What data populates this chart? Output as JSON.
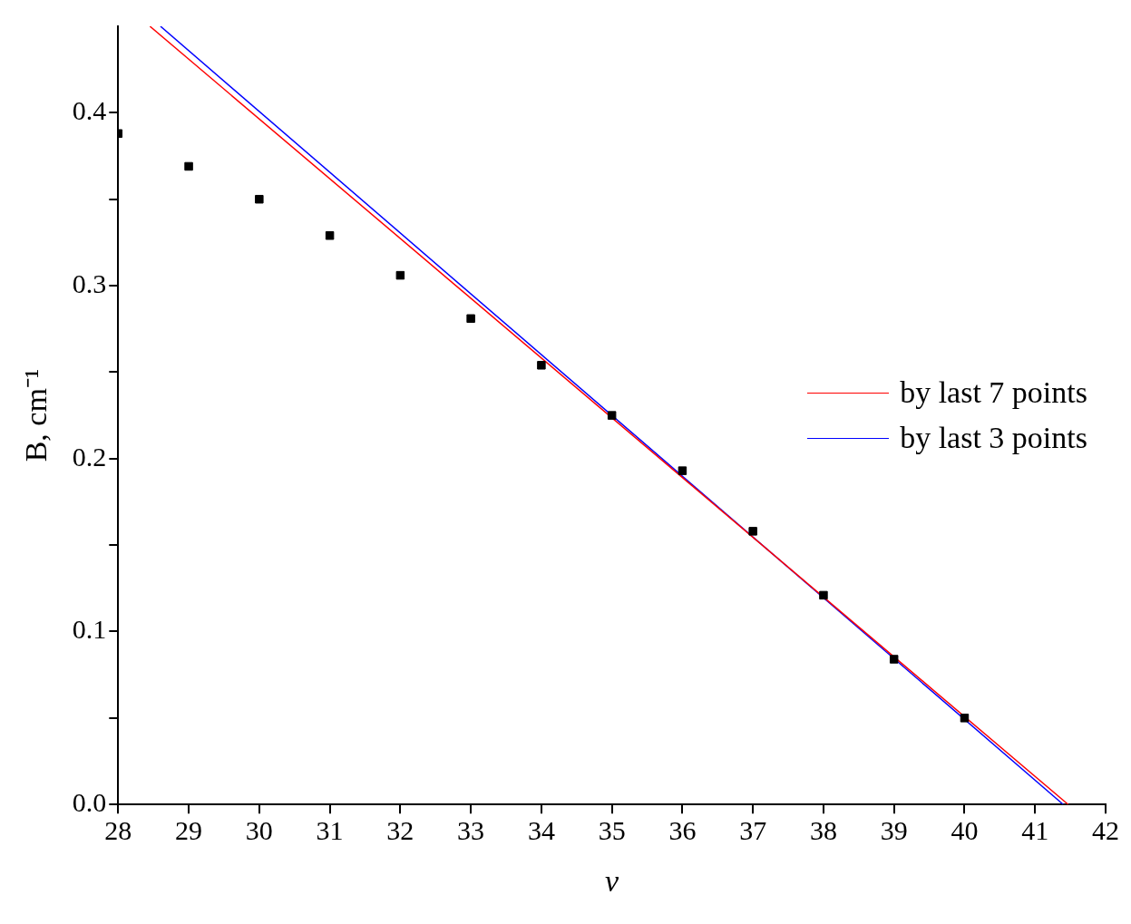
{
  "chart_data": {
    "type": "scatter",
    "xlabel": "v",
    "ylabel": "B, cm⁻¹",
    "xlim": [
      28,
      42
    ],
    "xticks": [
      28,
      29,
      30,
      31,
      32,
      33,
      34,
      35,
      36,
      37,
      38,
      39,
      40,
      41,
      42
    ],
    "ylim": [
      0,
      0.45
    ],
    "yticks": [
      {
        "value": 0,
        "label": "0.0"
      },
      {
        "value": 0.05,
        "label": null
      },
      {
        "value": 0.1,
        "label": "0.1"
      },
      {
        "value": 0.15,
        "label": null
      },
      {
        "value": 0.2,
        "label": "0.2"
      },
      {
        "value": 0.25,
        "label": null
      },
      {
        "value": 0.3,
        "label": "0.3"
      },
      {
        "value": 0.35,
        "label": null
      },
      {
        "value": 0.4,
        "label": "0.4"
      }
    ],
    "x": [
      28,
      29,
      30,
      31,
      32,
      33,
      34,
      35,
      36,
      37,
      38,
      39,
      40
    ],
    "grid": false,
    "legend": "right",
    "series": [
      {
        "type": "scatter",
        "color": "#000000",
        "marker": "square",
        "values": [
          0.388,
          0.369,
          0.35,
          0.329,
          0.306,
          0.281,
          0.254,
          0.225,
          0.193,
          0.158,
          0.121,
          0.084,
          0.05
        ]
      },
      {
        "type": "line",
        "name": "by last 7 points",
        "color": "#ff0000",
        "marker": "none",
        "x": [
          28.45,
          41.47
        ],
        "values": [
          0.45,
          0
        ]
      },
      {
        "type": "line",
        "name": "by last 3 points",
        "color": "#0000ff",
        "marker": "none",
        "x": [
          28.6,
          41.4
        ],
        "values": [
          0.45,
          0
        ]
      }
    ]
  }
}
